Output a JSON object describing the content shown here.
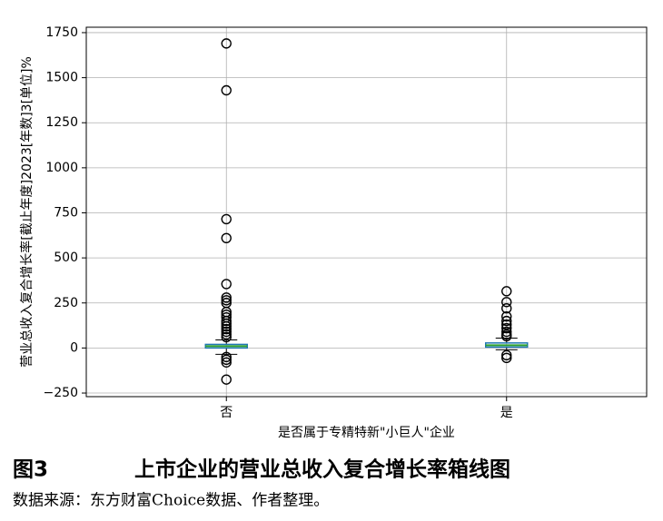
{
  "chart_data": {
    "type": "box",
    "y_label": "营业总收入复合增长率[截止年度]2023[年数]3[单位]%",
    "x_label": "是否属于专精特新\"小巨人\"企业",
    "categories": [
      "否",
      "是"
    ],
    "boxes": [
      {
        "whisker_low": -35,
        "q1": 0,
        "median": 10,
        "q3": 20,
        "whisker_high": 45,
        "outliers": [
          1690,
          1430,
          715,
          610,
          355,
          280,
          265,
          250,
          200,
          185,
          170,
          150,
          135,
          120,
          105,
          90,
          75,
          60,
          -50,
          -65,
          -80,
          -175
        ]
      },
      {
        "whisker_low": -10,
        "q1": 5,
        "median": 15,
        "q3": 28,
        "whisker_high": 55,
        "outliers": [
          315,
          255,
          220,
          175,
          150,
          130,
          110,
          90,
          75,
          65,
          -40,
          -55
        ]
      }
    ],
    "box_color": "#1f77b4",
    "median_color": "#2ca02c",
    "ylim": [
      -270,
      1780
    ],
    "yticks": [
      {
        "value": -250,
        "label": "−250"
      },
      0,
      250,
      500,
      750,
      1000,
      1250,
      1500,
      1750
    ],
    "grid": true
  },
  "caption": {
    "figure_label": "图3",
    "title": "上市企业的营业总收入复合增长率箱线图",
    "source": "数据来源：东方财富Choice数据、作者整理。"
  }
}
